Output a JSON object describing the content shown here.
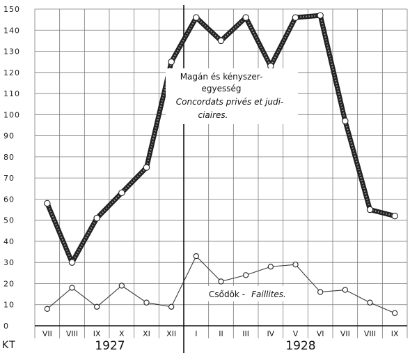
{
  "chart_data": {
    "type": "line",
    "unit_label": "KT",
    "y_ticks": [
      "150",
      "140",
      "130",
      "120",
      "110",
      "100",
      "90",
      "80",
      "70",
      "60",
      "50",
      "40",
      "30",
      "20",
      "10",
      "0"
    ],
    "ylim": [
      0,
      150
    ],
    "categories": [
      "VII",
      "VIII",
      "IX",
      "X",
      "XI",
      "XII",
      "I",
      "II",
      "III",
      "IV",
      "V",
      "VI",
      "VII",
      "VIII",
      "IX"
    ],
    "year_labels": [
      "1927",
      "1928"
    ],
    "grid": true,
    "series": [
      {
        "name": "Magán és kényszer-egyesség / Concordats privés et judiciaires.",
        "label_lines": [
          "Magán és kényszer-",
          "egyesség"
        ],
        "label_lines_italic": [
          "Concordats privés et judi-",
          "ciaires."
        ],
        "values": [
          58,
          30,
          51,
          63,
          75,
          125,
          146,
          135,
          146,
          123,
          146,
          147,
          97,
          55,
          52
        ],
        "color": "#3a3a3a"
      },
      {
        "name": "Csődök - Faillites.",
        "label_plain": "Csődök -",
        "label_italic": "Faillites.",
        "values": [
          8,
          18,
          9,
          19,
          11,
          9,
          33,
          21,
          24,
          28,
          29,
          16,
          17,
          11,
          6
        ],
        "color": "#3a3a3a"
      }
    ]
  }
}
